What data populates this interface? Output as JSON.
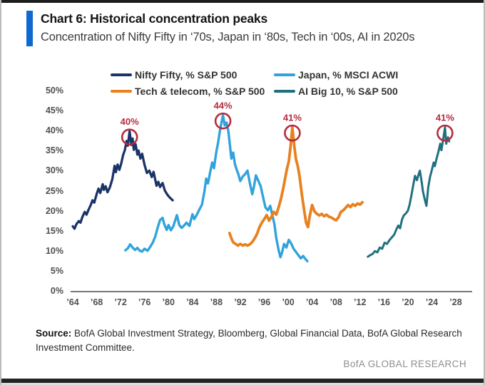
{
  "header": {
    "title": "Chart 6: Historical concentration peaks",
    "subtitle": "Concentration of Nifty Fifty in ‘70s, Japan in ‘80s, Tech in ‘00s, AI in 2020s",
    "accent_color": "#0f6ad0"
  },
  "y_axis": {
    "min": 0,
    "max": 50,
    "step": 5,
    "ticks": [
      "0%",
      "5%",
      "10%",
      "15%",
      "20%",
      "25%",
      "30%",
      "35%",
      "40%",
      "45%",
      "50%"
    ]
  },
  "x_axis": {
    "start_year": 1964,
    "end_year": 2028,
    "step": 4,
    "ticks": [
      "’64",
      "’68",
      "’72",
      "’76",
      "’80",
      "’84",
      "’88",
      "’92",
      "’96",
      "’00",
      "’04",
      "’08",
      "’12",
      "’16",
      "’20",
      "’24",
      "’28"
    ]
  },
  "chart_data": {
    "type": "line",
    "title": "Chart 6: Historical concentration peaks",
    "xlabel": "",
    "ylabel": "",
    "xlim": [
      1964,
      2028
    ],
    "ylim": [
      0,
      50
    ],
    "grid": false,
    "legend_position": "top",
    "series": [
      {
        "id": "nifty-fifty",
        "name": "Nifty Fifty, % S&P 500",
        "color": "#1b3468",
        "points": [
          [
            1964.0,
            16.3
          ],
          [
            1964.3,
            15.7
          ],
          [
            1964.6,
            16.8
          ],
          [
            1965.0,
            17.6
          ],
          [
            1965.3,
            17.2
          ],
          [
            1965.6,
            18.6
          ],
          [
            1966.0,
            19.9
          ],
          [
            1966.3,
            19.2
          ],
          [
            1966.6,
            20.3
          ],
          [
            1967.0,
            21.6
          ],
          [
            1967.3,
            22.8
          ],
          [
            1967.6,
            22.2
          ],
          [
            1968.0,
            24.4
          ],
          [
            1968.3,
            25.7
          ],
          [
            1968.6,
            24.6
          ],
          [
            1969.0,
            26.8
          ],
          [
            1969.2,
            25.4
          ],
          [
            1969.5,
            26.3
          ],
          [
            1969.8,
            24.8
          ],
          [
            1970.2,
            26.0
          ],
          [
            1970.6,
            28.0
          ],
          [
            1971.0,
            31.4
          ],
          [
            1971.2,
            29.8
          ],
          [
            1971.5,
            31.7
          ],
          [
            1971.8,
            30.4
          ],
          [
            1972.1,
            32.0
          ],
          [
            1972.4,
            34.0
          ],
          [
            1972.7,
            35.3
          ],
          [
            1973.0,
            37.6
          ],
          [
            1973.2,
            36.4
          ],
          [
            1973.5,
            40.0
          ],
          [
            1973.8,
            36.6
          ],
          [
            1974.0,
            38.2
          ],
          [
            1974.2,
            35.4
          ],
          [
            1974.5,
            36.8
          ],
          [
            1974.8,
            34.2
          ],
          [
            1975.0,
            35.2
          ],
          [
            1975.3,
            33.2
          ],
          [
            1975.6,
            34.4
          ],
          [
            1976.0,
            31.6
          ],
          [
            1976.4,
            29.6
          ],
          [
            1976.8,
            30.2
          ],
          [
            1977.2,
            28.6
          ],
          [
            1977.5,
            29.9
          ],
          [
            1978.0,
            26.4
          ],
          [
            1978.3,
            27.4
          ],
          [
            1978.6,
            26.1
          ],
          [
            1979.0,
            27.1
          ],
          [
            1979.4,
            25.2
          ],
          [
            1979.8,
            24.2
          ],
          [
            1980.2,
            23.5
          ],
          [
            1980.7,
            22.8
          ]
        ]
      },
      {
        "id": "japan",
        "name": "Japan, % MSCI ACWI",
        "color": "#31a3dc",
        "points": [
          [
            1972.8,
            10.3
          ],
          [
            1973.2,
            10.8
          ],
          [
            1973.6,
            11.8
          ],
          [
            1974.0,
            11.0
          ],
          [
            1974.4,
            10.4
          ],
          [
            1974.8,
            10.9
          ],
          [
            1975.2,
            10.2
          ],
          [
            1975.6,
            10.0
          ],
          [
            1976.0,
            10.7
          ],
          [
            1976.5,
            10.2
          ],
          [
            1977.0,
            11.3
          ],
          [
            1977.4,
            12.3
          ],
          [
            1977.8,
            13.8
          ],
          [
            1978.2,
            16.0
          ],
          [
            1978.6,
            17.9
          ],
          [
            1979.0,
            18.4
          ],
          [
            1979.3,
            16.8
          ],
          [
            1979.7,
            15.4
          ],
          [
            1980.0,
            16.6
          ],
          [
            1980.4,
            15.3
          ],
          [
            1980.8,
            16.3
          ],
          [
            1981.1,
            17.7
          ],
          [
            1981.4,
            19.1
          ],
          [
            1981.8,
            16.6
          ],
          [
            1982.2,
            15.9
          ],
          [
            1982.6,
            16.5
          ],
          [
            1983.0,
            17.2
          ],
          [
            1983.5,
            16.4
          ],
          [
            1984.0,
            19.3
          ],
          [
            1984.3,
            18.1
          ],
          [
            1984.7,
            19.1
          ],
          [
            1985.1,
            20.3
          ],
          [
            1985.6,
            21.7
          ],
          [
            1986.0,
            25.0
          ],
          [
            1986.3,
            28.2
          ],
          [
            1986.6,
            27.0
          ],
          [
            1987.0,
            30.1
          ],
          [
            1987.3,
            32.2
          ],
          [
            1987.6,
            30.8
          ],
          [
            1988.0,
            35.0
          ],
          [
            1988.3,
            37.3
          ],
          [
            1988.6,
            40.2
          ],
          [
            1988.9,
            42.5
          ],
          [
            1989.1,
            44.0
          ],
          [
            1989.4,
            41.5
          ],
          [
            1989.7,
            42.2
          ],
          [
            1990.0,
            40.0
          ],
          [
            1990.3,
            36.0
          ],
          [
            1990.5,
            33.2
          ],
          [
            1990.8,
            34.7
          ],
          [
            1991.1,
            31.8
          ],
          [
            1991.4,
            30.4
          ],
          [
            1991.7,
            29.2
          ],
          [
            1992.0,
            27.6
          ],
          [
            1992.4,
            28.7
          ],
          [
            1992.8,
            29.3
          ],
          [
            1993.2,
            30.2
          ],
          [
            1993.6,
            27.0
          ],
          [
            1994.0,
            24.3
          ],
          [
            1994.3,
            26.3
          ],
          [
            1994.6,
            29.0
          ],
          [
            1995.0,
            27.7
          ],
          [
            1995.4,
            26.3
          ],
          [
            1995.8,
            23.6
          ],
          [
            1996.2,
            21.0
          ],
          [
            1996.6,
            20.3
          ],
          [
            1997.0,
            21.4
          ],
          [
            1997.3,
            19.4
          ],
          [
            1997.7,
            16.8
          ],
          [
            1998.0,
            13.4
          ],
          [
            1998.4,
            10.4
          ],
          [
            1998.7,
            8.6
          ],
          [
            1999.0,
            9.9
          ],
          [
            1999.3,
            11.9
          ],
          [
            1999.7,
            11.0
          ],
          [
            2000.1,
            12.9
          ],
          [
            2000.5,
            12.0
          ],
          [
            2000.9,
            10.7
          ],
          [
            2001.3,
            9.9
          ],
          [
            2001.7,
            9.1
          ],
          [
            2002.1,
            8.3
          ],
          [
            2002.5,
            8.9
          ],
          [
            2002.9,
            8.1
          ],
          [
            2003.2,
            7.6
          ]
        ]
      },
      {
        "id": "tech-telecom",
        "name": "Tech & telecom, % S&P 500",
        "color": "#e8811f",
        "points": [
          [
            1990.2,
            14.6
          ],
          [
            1990.5,
            13.3
          ],
          [
            1990.8,
            12.3
          ],
          [
            1991.2,
            11.9
          ],
          [
            1991.6,
            11.5
          ],
          [
            1992.0,
            11.9
          ],
          [
            1992.4,
            11.5
          ],
          [
            1992.8,
            11.8
          ],
          [
            1993.2,
            11.5
          ],
          [
            1993.6,
            11.8
          ],
          [
            1994.0,
            12.4
          ],
          [
            1994.4,
            13.3
          ],
          [
            1994.8,
            14.4
          ],
          [
            1995.2,
            16.1
          ],
          [
            1995.6,
            17.2
          ],
          [
            1996.0,
            18.1
          ],
          [
            1996.4,
            19.1
          ],
          [
            1996.8,
            17.7
          ],
          [
            1997.2,
            18.7
          ],
          [
            1997.6,
            19.9
          ],
          [
            1998.0,
            19.2
          ],
          [
            1998.4,
            21.0
          ],
          [
            1998.8,
            23.2
          ],
          [
            1999.2,
            26.0
          ],
          [
            1999.5,
            28.4
          ],
          [
            1999.8,
            30.7
          ],
          [
            2000.1,
            32.5
          ],
          [
            2000.4,
            36.2
          ],
          [
            2000.7,
            41.0
          ],
          [
            2001.0,
            36.5
          ],
          [
            2001.3,
            33.0
          ],
          [
            2001.6,
            31.3
          ],
          [
            2001.9,
            28.8
          ],
          [
            2002.3,
            24.0
          ],
          [
            2002.7,
            20.0
          ],
          [
            2003.0,
            17.2
          ],
          [
            2003.3,
            16.1
          ],
          [
            2003.6,
            18.9
          ],
          [
            2004.0,
            21.6
          ],
          [
            2004.4,
            20.0
          ],
          [
            2004.8,
            19.4
          ],
          [
            2005.2,
            19.0
          ],
          [
            2005.6,
            19.4
          ],
          [
            2006.0,
            18.8
          ],
          [
            2006.4,
            19.2
          ],
          [
            2006.8,
            18.7
          ],
          [
            2007.2,
            18.5
          ],
          [
            2007.6,
            18.1
          ],
          [
            2008.0,
            17.8
          ],
          [
            2008.4,
            18.5
          ],
          [
            2008.8,
            19.9
          ],
          [
            2009.2,
            20.3
          ],
          [
            2009.6,
            20.9
          ],
          [
            2010.0,
            21.6
          ],
          [
            2010.4,
            21.1
          ],
          [
            2010.8,
            21.8
          ],
          [
            2011.2,
            21.4
          ],
          [
            2011.6,
            22.0
          ],
          [
            2012.0,
            21.7
          ],
          [
            2012.4,
            22.3
          ]
        ]
      },
      {
        "id": "ai-big-10",
        "name": "AI Big 10, % S&P 500",
        "color": "#20707f",
        "points": [
          [
            2013.3,
            8.7
          ],
          [
            2013.7,
            9.1
          ],
          [
            2014.1,
            9.4
          ],
          [
            2014.5,
            10.1
          ],
          [
            2014.9,
            9.8
          ],
          [
            2015.3,
            11.0
          ],
          [
            2015.7,
            10.7
          ],
          [
            2016.1,
            12.2
          ],
          [
            2016.5,
            11.9
          ],
          [
            2016.9,
            12.8
          ],
          [
            2017.3,
            13.5
          ],
          [
            2017.7,
            14.2
          ],
          [
            2018.1,
            15.6
          ],
          [
            2018.4,
            16.5
          ],
          [
            2018.7,
            15.8
          ],
          [
            2019.0,
            17.9
          ],
          [
            2019.3,
            19.0
          ],
          [
            2019.6,
            19.4
          ],
          [
            2020.0,
            20.2
          ],
          [
            2020.3,
            21.8
          ],
          [
            2020.6,
            24.1
          ],
          [
            2020.9,
            26.6
          ],
          [
            2021.2,
            28.9
          ],
          [
            2021.5,
            27.8
          ],
          [
            2021.8,
            29.3
          ],
          [
            2022.0,
            30.2
          ],
          [
            2022.3,
            27.4
          ],
          [
            2022.5,
            25.1
          ],
          [
            2022.8,
            23.1
          ],
          [
            2023.1,
            21.4
          ],
          [
            2023.4,
            26.0
          ],
          [
            2023.7,
            28.6
          ],
          [
            2024.0,
            30.3
          ],
          [
            2024.3,
            32.2
          ],
          [
            2024.5,
            31.3
          ],
          [
            2024.8,
            33.2
          ],
          [
            2025.1,
            34.9
          ],
          [
            2025.4,
            36.9
          ],
          [
            2025.6,
            35.3
          ],
          [
            2025.9,
            38.0
          ],
          [
            2026.2,
            41.0
          ],
          [
            2026.4,
            36.9
          ],
          [
            2026.7,
            38.5
          ],
          [
            2026.9,
            37.5
          ]
        ]
      }
    ],
    "annotations": [
      {
        "label": "40%",
        "year": 1973.5,
        "value": 40,
        "color": "#b52c3e"
      },
      {
        "label": "44%",
        "year": 1989.1,
        "value": 44,
        "color": "#b52c3e"
      },
      {
        "label": "41%",
        "year": 2000.7,
        "value": 41,
        "color": "#b52c3e"
      },
      {
        "label": "41%",
        "year": 2026.2,
        "value": 41,
        "color": "#b52c3e"
      }
    ]
  },
  "source": {
    "label": "Source:",
    "line1": " BofA Global Investment Strategy, Bloomberg, Global Financial Data, BofA Global Research",
    "line2": "Investment Committee."
  },
  "branding": "BofA GLOBAL RESEARCH"
}
